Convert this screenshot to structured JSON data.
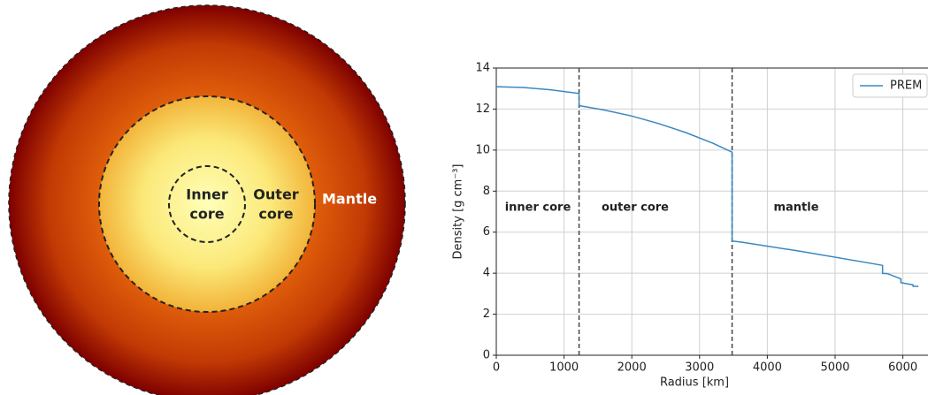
{
  "diagram": {
    "inner_core_label": [
      "Inner",
      "core"
    ],
    "outer_core_label": [
      "Outer",
      "core"
    ],
    "mantle_label": "Mantle"
  },
  "chart_data": {
    "type": "line",
    "xlabel": "Radius [km]",
    "ylabel": "Density [g cm⁻³]",
    "x": [
      0,
      400,
      800,
      1221.5,
      1221.5,
      1600,
      2000,
      2400,
      2800,
      3200,
      3480,
      3480,
      3630,
      4500,
      5600,
      5701,
      5701,
      5771,
      5971,
      5971,
      6151,
      6151,
      6230
    ],
    "series": [
      {
        "name": "PREM",
        "color": "#3a87c0",
        "values": [
          13.09,
          13.05,
          12.94,
          12.76,
          12.17,
          11.95,
          11.66,
          11.29,
          10.85,
          10.33,
          9.9,
          5.57,
          5.51,
          5.06,
          4.44,
          4.38,
          3.99,
          3.98,
          3.72,
          3.54,
          3.43,
          3.36,
          3.36
        ]
      }
    ],
    "boundaries": [
      1221.5,
      3480
    ],
    "layer_labels": [
      "inner core",
      "outer core",
      "mantle"
    ],
    "xlim": [
      0,
      6371
    ],
    "ylim": [
      0,
      14
    ],
    "xticks": [
      0,
      1000,
      2000,
      3000,
      4000,
      5000,
      6000
    ],
    "yticks": [
      0,
      2,
      4,
      6,
      8,
      10,
      12,
      14
    ],
    "grid": true,
    "legend": "upper right"
  }
}
